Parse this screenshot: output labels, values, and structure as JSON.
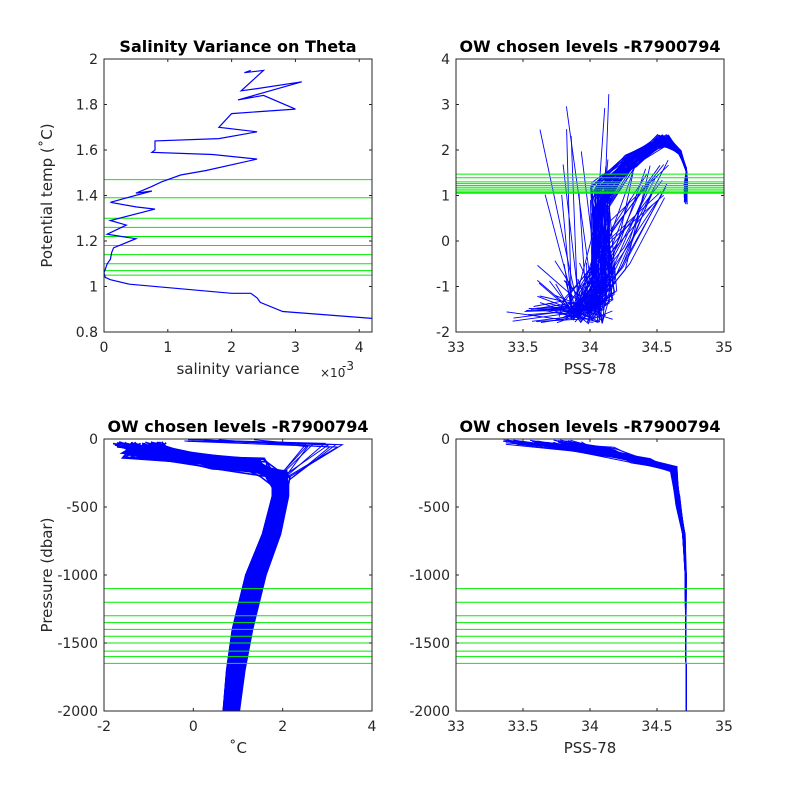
{
  "chart_data": [
    {
      "type": "line",
      "title": "Salinity Variance on Theta",
      "xlabel": "salinity variance",
      "x_exponent_label": "×10",
      "x_exponent_value": "-3",
      "ylabel": "Potential temp (˚C)",
      "xlim": [
        0,
        4.2
      ],
      "ylim": [
        0.8,
        2.0
      ],
      "xticks": [
        0,
        1,
        2,
        3,
        4
      ],
      "yticks": [
        0.8,
        1,
        1.2,
        1.4,
        1.6,
        1.8,
        2
      ],
      "ytick_labels": [
        "0.8",
        "1",
        "1.2",
        "1.4",
        "1.6",
        "1.8",
        "2"
      ],
      "series": [
        {
          "color": "#0000ff",
          "x": [
            2.3,
            2.2,
            2.5,
            2.15,
            2.4,
            3.1,
            2.1,
            2.5,
            3.0,
            2.0,
            1.8,
            2.4,
            1.8,
            0.8,
            0.8,
            0.75,
            1.7,
            2.4,
            1.6,
            1.2,
            0.9,
            0.75,
            0.5,
            0.75,
            0.1,
            0.5,
            0.8,
            0.1,
            0.35,
            0.05,
            0.5,
            0.15,
            0.12,
            0.1,
            0.05,
            0.0,
            0.02,
            0.1,
            0.4,
            2.0,
            2.3,
            2.4,
            2.45,
            2.8,
            4.2
          ],
          "y": [
            1.95,
            1.94,
            1.95,
            1.86,
            1.87,
            1.9,
            1.82,
            1.84,
            1.78,
            1.76,
            1.7,
            1.68,
            1.65,
            1.64,
            1.6,
            1.59,
            1.58,
            1.56,
            1.51,
            1.49,
            1.46,
            1.44,
            1.41,
            1.42,
            1.37,
            1.35,
            1.34,
            1.29,
            1.27,
            1.23,
            1.21,
            1.17,
            1.15,
            1.12,
            1.1,
            1.06,
            1.04,
            1.03,
            1.01,
            0.97,
            0.97,
            0.95,
            0.93,
            0.89,
            0.86
          ]
        }
      ],
      "hlines": [
        1.47,
        1.39,
        1.3,
        1.26,
        1.22,
        1.18,
        1.14,
        1.1,
        1.07,
        1.05
      ],
      "hline_color": "#00ee00"
    },
    {
      "type": "line",
      "title": "OW chosen levels -R7900794",
      "xlabel": "PSS-78",
      "ylabel": "",
      "xlim": [
        33,
        35
      ],
      "ylim": [
        -2,
        4
      ],
      "xticks": [
        33,
        33.5,
        34,
        34.5,
        35
      ],
      "yticks": [
        -2,
        -1,
        0,
        1,
        2,
        3,
        4
      ],
      "series_color": "#0000ff",
      "hlines": [
        1.47,
        1.39,
        1.3,
        1.26,
        1.22,
        1.18,
        1.14,
        1.1,
        1.07,
        1.05
      ],
      "hline_color": "#00ee00"
    },
    {
      "type": "line",
      "title": "OW chosen levels -R7900794",
      "xlabel": "˚C",
      "ylabel": "Pressure (dbar)",
      "xlim": [
        -2,
        4
      ],
      "ylim": [
        -2000,
        0
      ],
      "xticks": [
        -2,
        0,
        2,
        4
      ],
      "yticks": [
        -2000,
        -1500,
        -1000,
        -500,
        0
      ],
      "series_color": "#0000ff",
      "hlines": [
        -1100,
        -1200,
        -1300,
        -1350,
        -1400,
        -1450,
        -1500,
        -1560,
        -1600,
        -1650
      ],
      "hline_color": "#00ee00"
    },
    {
      "type": "line",
      "title": "OW chosen levels -R7900794",
      "xlabel": "PSS-78",
      "ylabel": "",
      "xlim": [
        33,
        35
      ],
      "ylim": [
        -2000,
        0
      ],
      "xticks": [
        33,
        33.5,
        34,
        34.5,
        35
      ],
      "yticks": [
        -2000,
        -1500,
        -1000,
        -500,
        0
      ],
      "series_color": "#0000ff",
      "hlines": [
        -1100,
        -1200,
        -1300,
        -1350,
        -1400,
        -1450,
        -1500,
        -1560,
        -1600,
        -1650
      ],
      "hline_color": "#00ee00"
    }
  ]
}
